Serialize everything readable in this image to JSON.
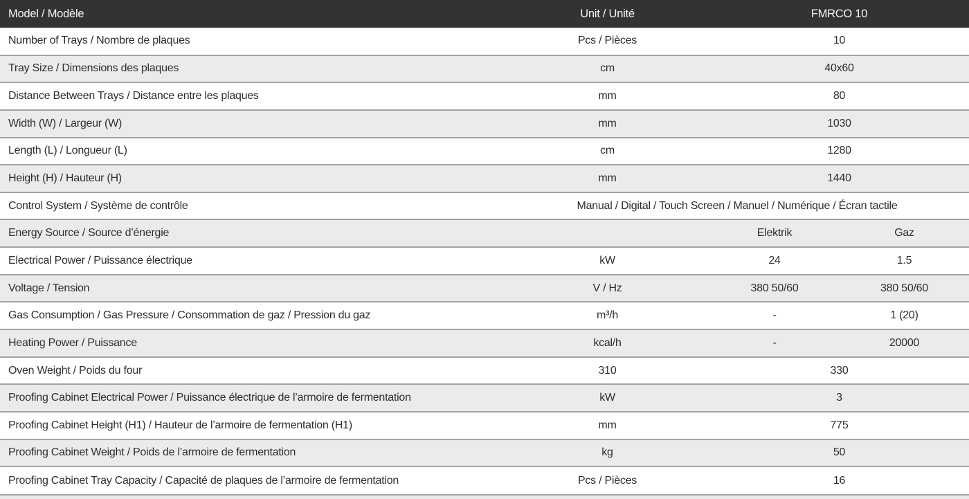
{
  "colors": {
    "header_bg": "#333333",
    "header_text": "#f7f7f7",
    "row_white": "#ffffff",
    "row_gray": "#ebebeb",
    "separator": "#a3a3a3",
    "body_text": "#2e2e2e"
  },
  "header": {
    "model_label": "Model / Modèle",
    "unit_label": "Unit / Unité",
    "model_value": "FMRCO 10"
  },
  "rows": [
    {
      "label": "Number of Trays / Nombre de plaques",
      "unit": "Pcs / Pièces",
      "value": "10"
    },
    {
      "label": "Tray Size / Dimensions des plaques",
      "unit": "cm",
      "value": "40x60"
    },
    {
      "label": "Distance Between Trays / Distance entre les plaques",
      "unit": "mm",
      "value": "80"
    },
    {
      "label": "Width (W) / Largeur (W)",
      "unit": "mm",
      "value": "1030"
    },
    {
      "label": "Length (L) / Longueur (L)",
      "unit": "cm",
      "value": "1280"
    },
    {
      "label": "Height (H) / Hauteur (H)",
      "unit": "mm",
      "value": "1440"
    },
    {
      "label": "Control System / Système de contrôle",
      "value": "Manual / Digital / Touch Screen / Manuel / Numérique / Écran tactile"
    },
    {
      "label": "Energy Source / Source d’énergie",
      "unit": "",
      "value_a": "Elektrik",
      "value_b": "Gaz"
    },
    {
      "label": "Electrical Power / Puissance électrique",
      "unit": "kW",
      "value_a": "24",
      "value_b": "1.5"
    },
    {
      "label": "Voltage / Tension",
      "unit": "V / Hz",
      "value_a": "380 50/60",
      "value_b": "380 50/60"
    },
    {
      "label": "Gas Consumption / Gas Pressure / Consommation de gaz / Pression du gaz",
      "unit": "m³/h",
      "value_a": "-",
      "value_b": "1 (20)"
    },
    {
      "label": "Heating Power / Puissance",
      "unit": "kcal/h",
      "value_a": "-",
      "value_b": "20000"
    },
    {
      "label": "Oven Weight / Poids du four",
      "unit": "310",
      "value": "330"
    },
    {
      "label": "Proofing Cabinet Electrical Power / Puissance électrique de l’armoire de fermentation",
      "unit": "kW",
      "value": "3"
    },
    {
      "label": "Proofing Cabinet Height (H1) / Hauteur de l’armoire de fermentation (H1)",
      "unit": "mm",
      "value": "775"
    },
    {
      "label": "Proofing Cabinet Weight / Poids de l’armoire de fermentation",
      "unit": "kg",
      "value": "50"
    },
    {
      "label": "Proofing Cabinet Tray Capacity / Capacité de plaques de l’armoire de fermentation",
      "unit": "Pcs / Pièces",
      "value": "16"
    }
  ]
}
